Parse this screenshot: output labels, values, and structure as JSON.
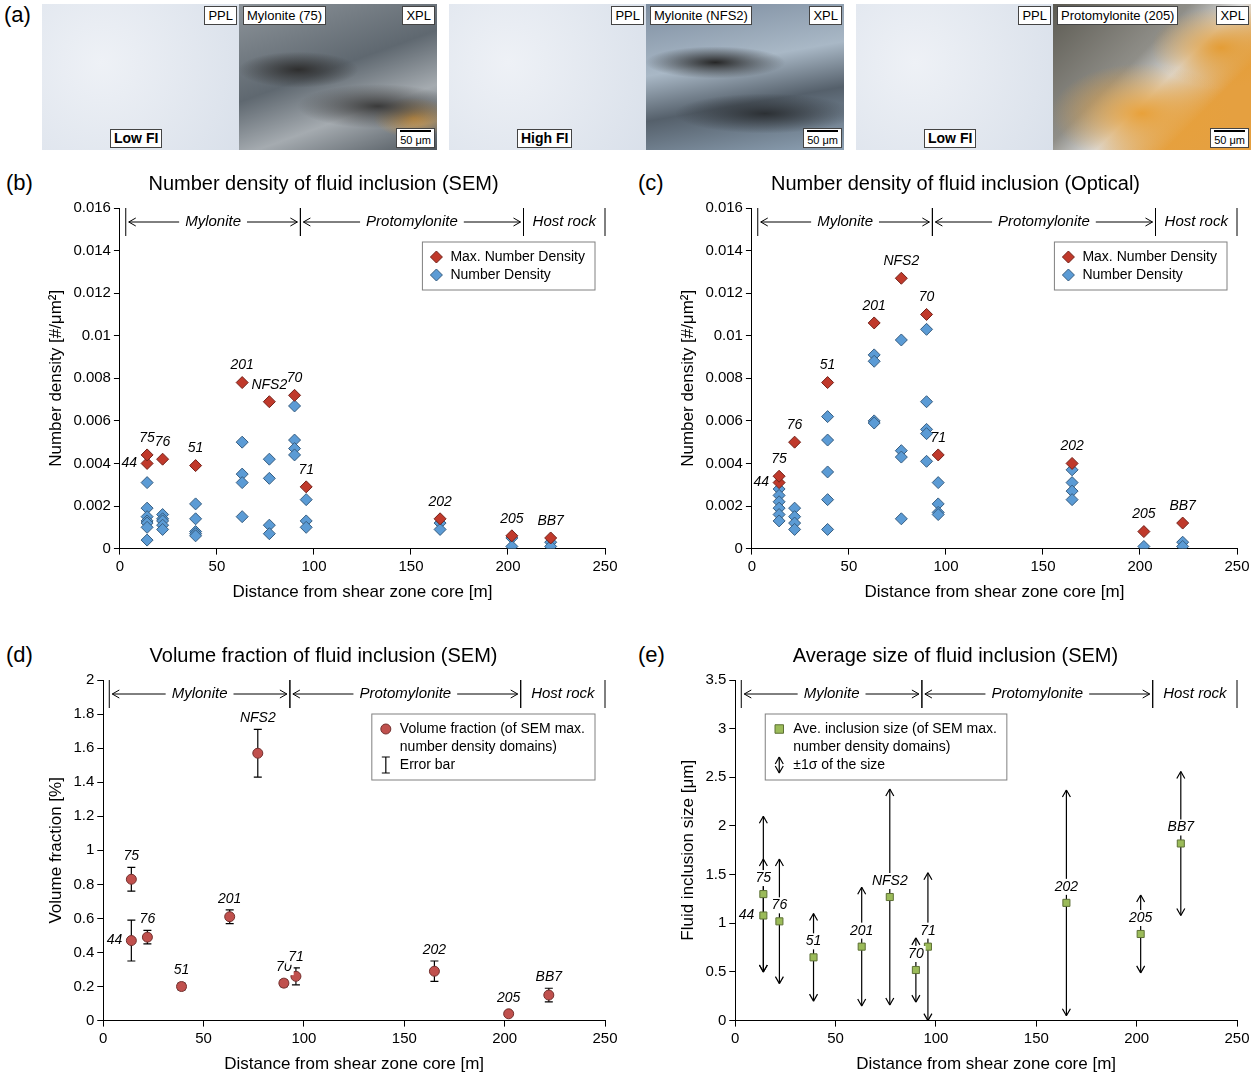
{
  "panel_a": {
    "letter": "(a)",
    "images": [
      {
        "left_tag": "PPL",
        "name": "Mylonite (75)",
        "right_tag": "XPL",
        "fi": "Low FI",
        "scale": "50 μm"
      },
      {
        "left_tag": "PPL",
        "name": "Mylonite (NFS2)",
        "right_tag": "XPL",
        "fi": "High FI",
        "scale": "50 μm"
      },
      {
        "left_tag": "PPL",
        "name": "Protomylonite (205)",
        "right_tag": "XPL",
        "fi": "Low FI",
        "scale": "50 μm"
      }
    ]
  },
  "chart_data": [
    {
      "letter": "(b)",
      "type": "scatter",
      "title": "Number density of fluid inclusion (SEM)",
      "x_label": "Distance from shear zone core [m]",
      "y_label": "Number density [#/μm²]",
      "xlim": [
        0,
        250
      ],
      "xticks": [
        0,
        50,
        100,
        150,
        200,
        250
      ],
      "ylim": [
        0,
        0.016
      ],
      "yticks": [
        0,
        0.002,
        0.004,
        0.006,
        0.008,
        0.01,
        0.012,
        0.014,
        0.016
      ],
      "grid": false,
      "legend": "top-right",
      "zones": [
        {
          "label": "Mylonite",
          "from": 3,
          "to": 93
        },
        {
          "label": "Protomylonite",
          "from": 93,
          "to": 208
        },
        {
          "label": "Host rock",
          "from": 208,
          "to": 250
        }
      ],
      "series": [
        {
          "name": "Max. Number Density",
          "color": "#c0392b",
          "marker": "diamond",
          "x": [
            14,
            14,
            22,
            39,
            63,
            77,
            90,
            96,
            165,
            202,
            222
          ],
          "values": [
            0.004,
            0.0044,
            0.0042,
            0.0039,
            0.0078,
            0.0069,
            0.0072,
            0.0029,
            0.0014,
            0.0006,
            0.0005
          ],
          "labels": [
            "44",
            "75",
            "76",
            "51",
            "201",
            "NFS2",
            "70",
            "71",
            "202",
            "205",
            "BB7"
          ]
        },
        {
          "name": "Number Density",
          "color": "#5b9bd5",
          "marker": "diamond",
          "x": [
            14,
            14,
            14,
            14,
            14,
            14,
            14,
            22,
            22,
            22,
            22,
            22,
            39,
            39,
            39,
            39,
            39,
            63,
            63,
            63,
            63,
            77,
            77,
            77,
            77,
            90,
            90,
            90,
            90,
            96,
            96,
            96,
            165,
            165,
            202,
            202,
            222,
            222
          ],
          "values": [
            0.0031,
            0.0019,
            0.0015,
            0.0013,
            0.0012,
            0.001,
            0.0004,
            0.0016,
            0.0014,
            0.0013,
            0.0011,
            0.0009,
            0.0021,
            0.0014,
            0.0008,
            0.0007,
            0.0006,
            0.005,
            0.0035,
            0.0031,
            0.0015,
            0.0042,
            0.0033,
            0.0011,
            0.0007,
            0.0067,
            0.0051,
            0.0047,
            0.0044,
            0.0023,
            0.0013,
            0.001,
            0.0012,
            0.0009,
            0.0005,
            0.0001,
            0.0003,
            0.0001
          ]
        }
      ]
    },
    {
      "letter": "(c)",
      "type": "scatter",
      "title": "Number density of fluid inclusion (Optical)",
      "x_label": "Distance from shear zone core [m]",
      "y_label": "Number density [#/μm²]",
      "xlim": [
        0,
        250
      ],
      "xticks": [
        0,
        50,
        100,
        150,
        200,
        250
      ],
      "ylim": [
        0,
        0.016
      ],
      "yticks": [
        0,
        0.002,
        0.004,
        0.006,
        0.008,
        0.01,
        0.012,
        0.014,
        0.016
      ],
      "grid": false,
      "legend": "top-right",
      "zones": [
        {
          "label": "Mylonite",
          "from": 3,
          "to": 93
        },
        {
          "label": "Protomylonite",
          "from": 93,
          "to": 208
        },
        {
          "label": "Host rock",
          "from": 208,
          "to": 250
        }
      ],
      "series": [
        {
          "name": "Max. Number Density",
          "color": "#c0392b",
          "marker": "diamond",
          "x": [
            14,
            14,
            22,
            39,
            63,
            77,
            90,
            96,
            165,
            202,
            222
          ],
          "values": [
            0.0031,
            0.0034,
            0.005,
            0.0078,
            0.0106,
            0.0127,
            0.011,
            0.0044,
            0.004,
            0.0008,
            0.0012
          ],
          "labels": [
            "44",
            "75",
            "76",
            "51",
            "201",
            "NFS2",
            "70",
            "71",
            "202",
            "205",
            "BB7"
          ]
        },
        {
          "name": "Number Density",
          "color": "#5b9bd5",
          "marker": "diamond",
          "x": [
            14,
            14,
            14,
            14,
            14,
            14,
            22,
            22,
            22,
            22,
            39,
            39,
            39,
            39,
            39,
            63,
            63,
            63,
            63,
            77,
            77,
            77,
            77,
            90,
            90,
            90,
            90,
            90,
            96,
            96,
            96,
            96,
            165,
            165,
            165,
            165,
            202,
            222,
            222
          ],
          "values": [
            0.0028,
            0.0025,
            0.0022,
            0.0019,
            0.0016,
            0.0013,
            0.0019,
            0.0015,
            0.0012,
            0.0009,
            0.0062,
            0.0051,
            0.0036,
            0.0023,
            0.0009,
            0.0091,
            0.0088,
            0.006,
            0.0059,
            0.0098,
            0.0046,
            0.0043,
            0.0014,
            0.0103,
            0.0069,
            0.0056,
            0.0054,
            0.0041,
            0.0031,
            0.0021,
            0.0017,
            0.0016,
            0.0037,
            0.0031,
            0.0027,
            0.0023,
            0.0001,
            0.0003,
            0.0001
          ]
        }
      ]
    },
    {
      "letter": "(d)",
      "type": "scatter",
      "title": "Volume fraction of fluid inclusion (SEM)",
      "x_label": "Distance from shear zone core [m]",
      "y_label": "Volume fraction [%]",
      "xlim": [
        0,
        250
      ],
      "xticks": [
        0,
        50,
        100,
        150,
        200,
        250
      ],
      "ylim": [
        0,
        2
      ],
      "yticks": [
        0,
        0.2,
        0.4,
        0.6,
        0.8,
        1,
        1.2,
        1.4,
        1.6,
        1.8,
        2
      ],
      "grid": false,
      "legend": "top-right",
      "zones": [
        {
          "label": "Mylonite",
          "from": 3,
          "to": 93
        },
        {
          "label": "Protomylonite",
          "from": 93,
          "to": 208
        },
        {
          "label": "Host rock",
          "from": 208,
          "to": 250
        }
      ],
      "series": [
        {
          "name": "Volume fraction (of SEM max. number density domains)",
          "color": "#c0504d",
          "marker": "circle",
          "line_style": "cap",
          "x": [
            14,
            14,
            22,
            39,
            63,
            77,
            90,
            96,
            165,
            202,
            222
          ],
          "values": [
            0.47,
            0.83,
            0.49,
            0.2,
            0.61,
            1.57,
            0.22,
            0.26,
            0.29,
            0.04,
            0.15
          ],
          "error": [
            0.12,
            0.07,
            0.04,
            0.02,
            0.04,
            0.14,
            0.02,
            0.05,
            0.06,
            0.01,
            0.04
          ],
          "error_name": "Error bar",
          "labels": [
            "44",
            "75",
            "76",
            "51",
            "201",
            "NFS2",
            "70",
            "71",
            "202",
            "205",
            "BB7"
          ]
        }
      ]
    },
    {
      "letter": "(e)",
      "type": "scatter",
      "title": "Average size of fluid inclusion (SEM)",
      "x_label": "Distance from shear zone core [m]",
      "y_label": "Fluid inclusion size [μm]",
      "xlim": [
        0,
        250
      ],
      "xticks": [
        0,
        50,
        100,
        150,
        200,
        250
      ],
      "ylim": [
        0,
        3.5
      ],
      "yticks": [
        0,
        0.5,
        1,
        1.5,
        2,
        2.5,
        3,
        3.5
      ],
      "grid": false,
      "legend": "top-left",
      "zones": [
        {
          "label": "Mylonite",
          "from": 3,
          "to": 93
        },
        {
          "label": "Protomylonite",
          "from": 93,
          "to": 208
        },
        {
          "label": "Host rock",
          "from": 208,
          "to": 250
        }
      ],
      "series": [
        {
          "name": "Ave. inclusion size (of SEM max. number density domains)",
          "color": "#9bbb59",
          "marker": "square",
          "line_style": "arrow",
          "x": [
            14,
            14,
            22,
            39,
            63,
            77,
            90,
            96,
            165,
            202,
            222
          ],
          "values": [
            1.08,
            1.3,
            1.02,
            0.65,
            0.76,
            1.27,
            0.52,
            0.76,
            1.21,
            0.89,
            1.82
          ],
          "error": [
            0.58,
            0.8,
            0.64,
            0.45,
            0.61,
            1.11,
            0.33,
            0.76,
            1.16,
            0.4,
            0.74
          ],
          "error_name": "±1σ of the size",
          "labels": [
            "44",
            "75",
            "76",
            "51",
            "201",
            "NFS2",
            "70",
            "71",
            "202",
            "205",
            "BB7"
          ]
        }
      ]
    }
  ]
}
